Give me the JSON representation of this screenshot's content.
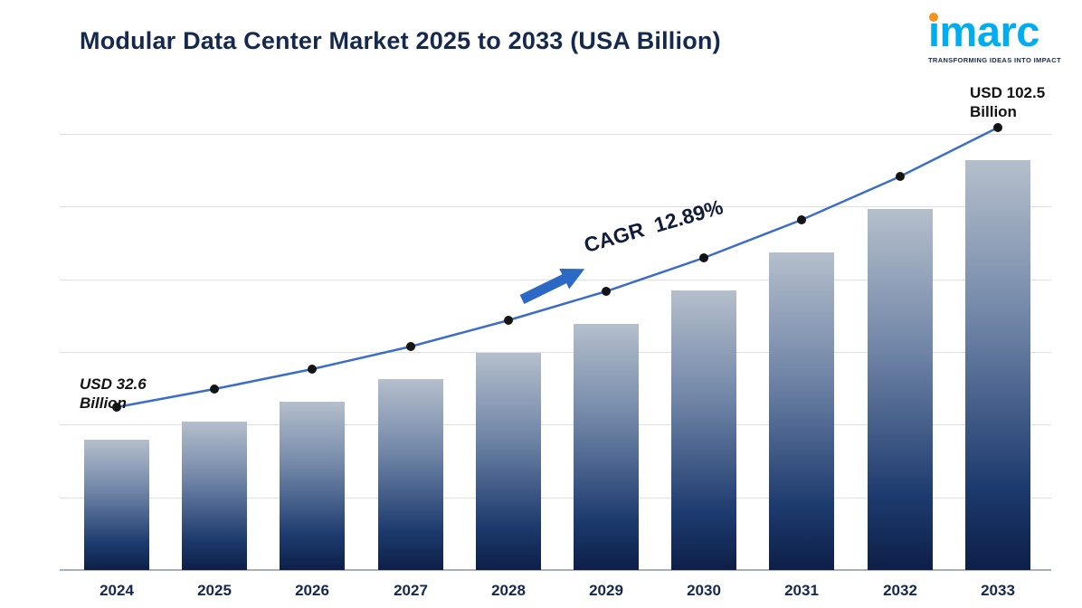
{
  "header": {
    "title": "Modular Data Center Market 2025 to 2033 (USA Billion)"
  },
  "logo": {
    "brand": "imarc",
    "tagline": "TRANSFORMING IDEAS INTO IMPACT"
  },
  "chart_data": {
    "type": "bar",
    "title": "Modular Data Center Market 2025 to 2033 (USA Billion)",
    "unit": "USD Billion",
    "categories": [
      "2024",
      "2025",
      "2026",
      "2027",
      "2028",
      "2029",
      "2030",
      "2031",
      "2032",
      "2033"
    ],
    "values": [
      32.6,
      37.0,
      42.0,
      47.8,
      54.2,
      61.6,
      70.0,
      79.5,
      90.2,
      102.5
    ],
    "line_overlay": true,
    "grid": "horizontal",
    "legend": "none",
    "ylim": [
      0,
      120
    ],
    "cagr": "12.89%",
    "annotations": {
      "start": {
        "line1": "USD 32.6",
        "line2": "Billion"
      },
      "end": {
        "line1": "USD 102.5",
        "line2": "Billion"
      },
      "cagr_label": "CAGR  12.89%"
    },
    "colors": {
      "bar_top": "#b5bfcc",
      "bar_bottom": "#0d1f47",
      "trend_line": "#3a6cc8",
      "dot": "#141414",
      "arrow": "#2c69c5",
      "title_navy": "#15294e",
      "logo_cyan": "#00aeef",
      "logo_orange": "#f6921e"
    }
  }
}
